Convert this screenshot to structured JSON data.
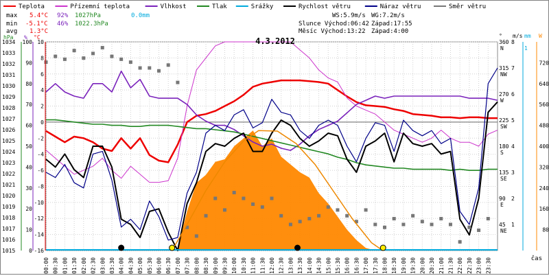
{
  "chart_data": {
    "type": "line",
    "title": "4.3.2012",
    "xlabel": "čas",
    "x_ticks": [
      "00:00",
      "00:30",
      "01:00",
      "01:30",
      "02:00",
      "02:30",
      "03:00",
      "03:30",
      "04:00",
      "04:30",
      "05:00",
      "05:30",
      "06:00",
      "06:30",
      "07:00",
      "07:30",
      "08:00",
      "08:30",
      "09:00",
      "09:30",
      "10:00",
      "10:30",
      "11:00",
      "11:30",
      "12:00",
      "12:30",
      "13:00",
      "13:30",
      "14:00",
      "14:30",
      "15:00",
      "15:30",
      "16:00",
      "16:30",
      "17:00",
      "17:30",
      "18:00",
      "18:30",
      "19:00",
      "19:30",
      "20:00",
      "20:30",
      "21:00",
      "21:30",
      "22:00",
      "22:30",
      "23:00",
      "23:30"
    ],
    "legend": [
      {
        "name": "Teplota",
        "color": "#ee0000"
      },
      {
        "name": "Přízemní teplota",
        "color": "#cc33cc"
      },
      {
        "name": "Vlhkost",
        "color": "#7a22bb"
      },
      {
        "name": "Tlak",
        "color": "#228822"
      },
      {
        "name": "Srážky",
        "color": "#00aadd"
      },
      {
        "name": "Rychlost větru",
        "color": "#000000"
      },
      {
        "name": "Náraz větru",
        "color": "#000088"
      },
      {
        "name": "Směr větru",
        "color": "#777777"
      }
    ],
    "stats": {
      "max": {
        "label": "max",
        "temp": "5.4°C",
        "hum": "92%",
        "pres": "1027hPa",
        "rain": "0.0mm"
      },
      "min": {
        "label": "min",
        "temp": "-5.1°C",
        "hum": "46%",
        "pres": "1022.3hPa"
      },
      "avg": {
        "label": "avg",
        "temp": "1.3°C"
      }
    },
    "info": {
      "ws": "WS:5.9m/s",
      "wg": "WG:7.2m/s",
      "sun_rise": "Slunce Východ:06:42",
      "sun_set": "Západ:17:55",
      "moon_rise": "Měsíc  Východ:13:22",
      "moon_set": "Západ:4:00"
    },
    "axes": {
      "pressure": {
        "unit": "hPa",
        "min": 1015,
        "max": 1034,
        "ticks": [
          "1034",
          "1033",
          "1032",
          "1031",
          "1030",
          "1029",
          "1028",
          "1027",
          "1026",
          "1025",
          "1024",
          "1023",
          "1022",
          "1021",
          "1020",
          "1019",
          "1018",
          "1017",
          "1016",
          "1015"
        ]
      },
      "humidity": {
        "unit": "%",
        "min": 0,
        "max": 100,
        "ticks": [
          "100",
          "90",
          "80",
          "70",
          "60",
          "50",
          "40",
          "30",
          "20",
          "10",
          "0"
        ]
      },
      "temperature": {
        "unit": "°C",
        "min": -16,
        "max": 10,
        "ticks": [
          "10",
          "8",
          "6",
          "4",
          "2",
          "0",
          "-2",
          "-4",
          "-6",
          "-8",
          "-10",
          "-12",
          "-14",
          "-16"
        ]
      },
      "direction": {
        "unit": "°",
        "min": 0,
        "max": 360,
        "ticks": [
          {
            "deg": "360",
            "dir": "N"
          },
          {
            "deg": "315",
            "dir": "NW"
          },
          {
            "deg": "270",
            "dir": "W"
          },
          {
            "deg": "225",
            "dir": "SW"
          },
          {
            "deg": "180",
            "dir": "S"
          },
          {
            "deg": "135",
            "dir": "SE"
          },
          {
            "deg": "90",
            "dir": "E"
          },
          {
            "deg": "45",
            "dir": "NE"
          }
        ]
      },
      "wind": {
        "unit": "m/s",
        "min": 0,
        "max": 8,
        "ticks": [
          "8",
          "7",
          "6",
          "5",
          "4",
          "3",
          "2",
          "1"
        ]
      },
      "rain": {
        "unit": "mm",
        "min": 0,
        "max": 1,
        "ticks": [
          "1"
        ]
      },
      "solar": {
        "unit": "W",
        "min": 0,
        "max": 800,
        "ticks": [
          "720",
          "640",
          "560",
          "480",
          "400",
          "320",
          "240",
          "160",
          "80"
        ]
      }
    },
    "series": [
      {
        "name": "Teplota",
        "axis": "temperature",
        "x": [
          0,
          0.5,
          1,
          1.5,
          2,
          2.5,
          3,
          3.5,
          4,
          4.5,
          5,
          5.5,
          6,
          6.5,
          7,
          7.5,
          8,
          8.5,
          9,
          9.5,
          10,
          10.5,
          11,
          11.5,
          12,
          12.5,
          13,
          13.5,
          14,
          14.5,
          15,
          15.5,
          16,
          16.5,
          17,
          17.5,
          18,
          18.5,
          19,
          19.5,
          20,
          20.5,
          21,
          21.5,
          22,
          22.5,
          23,
          23.5,
          24
        ],
        "y": [
          -1.1,
          -1.8,
          -2.5,
          -1.8,
          -2,
          -2.5,
          -3.3,
          -3.6,
          -2,
          -3.3,
          -2,
          -4.1,
          -4.8,
          -5,
          -2.8,
          0,
          0.8,
          1,
          1.4,
          2,
          2.6,
          3.4,
          4.4,
          4.8,
          5,
          5.2,
          5.2,
          5.2,
          5.1,
          5.0,
          4.8,
          4.0,
          3.2,
          2.5,
          2.1,
          2.0,
          1.9,
          1.6,
          1.4,
          1.0,
          0.9,
          0.8,
          0.6,
          0.6,
          0.5,
          0.6,
          0.6,
          0.5,
          0.5
        ]
      },
      {
        "name": "Přízemní teplota",
        "axis": "temperature",
        "x": [
          0,
          0.5,
          1,
          1.5,
          2,
          2.5,
          3,
          3.5,
          4,
          4.5,
          5,
          5.5,
          6,
          6.5,
          7,
          7.5,
          8,
          8.5,
          9,
          9.5,
          10,
          10.5,
          11,
          11.5,
          12,
          12.5,
          13,
          13.5,
          14,
          14.5,
          15,
          15.5,
          16,
          16.5,
          17,
          17.5,
          18,
          18.5,
          19,
          19.5,
          20,
          20.5,
          21,
          21.5,
          22,
          22.5,
          23,
          23.5,
          24
        ],
        "y": [
          -3.5,
          -4.5,
          -5.5,
          -6.5,
          -6,
          -5.5,
          -4.5,
          -6,
          -7,
          -5.5,
          -6.5,
          -7.5,
          -7.5,
          -7.3,
          -4.5,
          2,
          6.5,
          8,
          9.5,
          10,
          10,
          10,
          10,
          10,
          10,
          10,
          10,
          9,
          8,
          6.5,
          5.5,
          5,
          3,
          2,
          1.5,
          1,
          0,
          -1,
          -1.5,
          -2,
          -2.5,
          -2,
          -1,
          -2,
          -2.5,
          -2.5,
          -3,
          -1.5,
          -1
        ]
      },
      {
        "name": "Vlhkost",
        "axis": "humidity",
        "x": [
          0,
          0.5,
          1,
          1.5,
          2,
          2.5,
          3,
          3.5,
          4,
          4.5,
          5,
          5.5,
          6,
          6.5,
          7,
          7.5,
          8,
          8.5,
          9,
          9.5,
          10,
          10.5,
          11,
          11.5,
          12,
          12.5,
          13,
          13.5,
          14,
          14.5,
          15,
          15.5,
          16,
          16.5,
          17,
          17.5,
          18,
          18.5,
          19,
          19.5,
          20,
          20.5,
          21,
          21.5,
          22,
          22.5,
          23,
          23.5,
          24
        ],
        "y": [
          76,
          80,
          76,
          74,
          73,
          80,
          80,
          76,
          86,
          78,
          82,
          74,
          73,
          73,
          73,
          70,
          65,
          62,
          60,
          60,
          58,
          55,
          52,
          50,
          51,
          49,
          48,
          51,
          55,
          58,
          60,
          62,
          66,
          70,
          72,
          74,
          73,
          74,
          74,
          74,
          74,
          74,
          74,
          74,
          74,
          73,
          73,
          73,
          72
        ]
      },
      {
        "name": "Tlak",
        "axis": "pressure",
        "x": [
          0,
          0.5,
          1,
          1.5,
          2,
          2.5,
          3,
          3.5,
          4,
          4.5,
          5,
          5.5,
          6,
          6.5,
          7,
          7.5,
          8,
          8.5,
          9,
          9.5,
          10,
          10.5,
          11,
          11.5,
          12,
          12.5,
          13,
          13.5,
          14,
          14.5,
          15,
          15.5,
          16,
          16.5,
          17,
          17.5,
          18,
          18.5,
          19,
          19.5,
          20,
          20.5,
          21,
          21.5,
          22,
          22.5,
          23,
          23.5,
          24
        ],
        "y": [
          1026.9,
          1026.9,
          1026.8,
          1026.7,
          1026.6,
          1026.5,
          1026.5,
          1026.4,
          1026.4,
          1026.3,
          1026.3,
          1026.4,
          1026.4,
          1026.4,
          1026.3,
          1026.2,
          1026.1,
          1026.1,
          1026,
          1025.9,
          1025.8,
          1025.6,
          1025.4,
          1025.2,
          1025,
          1024.8,
          1024.6,
          1024.4,
          1024.2,
          1024,
          1023.8,
          1023.5,
          1023.3,
          1023,
          1022.8,
          1022.7,
          1022.6,
          1022.5,
          1022.5,
          1022.4,
          1022.4,
          1022.4,
          1022.4,
          1022.3,
          1022.4,
          1022.3,
          1022.3,
          1022.4,
          1022.4
        ]
      },
      {
        "name": "Rychlost větru",
        "axis": "wind",
        "x": [
          0,
          0.5,
          1,
          1.5,
          2,
          2.5,
          3,
          3.5,
          4,
          4.5,
          5,
          5.5,
          6,
          6.5,
          7,
          7.5,
          8,
          8.5,
          9,
          9.5,
          10,
          10.5,
          11,
          11.5,
          12,
          12.5,
          13,
          13.5,
          14,
          14.5,
          15,
          15.5,
          16,
          16.5,
          17,
          17.5,
          18,
          18.5,
          19,
          19.5,
          20,
          20.5,
          21,
          21.5,
          22,
          22.5,
          23,
          23.5,
          24
        ],
        "y": [
          3.5,
          3.2,
          3.7,
          3.1,
          2.8,
          4.0,
          4.0,
          3.2,
          1.2,
          1.0,
          0.5,
          1.5,
          1.6,
          0.7,
          0,
          1.8,
          2.6,
          3.8,
          4.1,
          4.0,
          4.3,
          4.5,
          3.8,
          3.8,
          4.5,
          5.0,
          4.8,
          4.3,
          4.0,
          4.2,
          4.5,
          4.4,
          3.5,
          3.0,
          4.0,
          4.2,
          4.5,
          3.4,
          4.5,
          4.1,
          4.0,
          4.1,
          3.7,
          3.8,
          1.2,
          0.6,
          2.0,
          5.3,
          5.7
        ]
      },
      {
        "name": "Náraz větru",
        "axis": "wind",
        "x": [
          0,
          0.5,
          1,
          1.5,
          2,
          2.5,
          3,
          3.5,
          4,
          4.5,
          5,
          5.5,
          6,
          6.5,
          7,
          7.5,
          8,
          8.5,
          9,
          9.5,
          10,
          10.5,
          11,
          11.5,
          12,
          12.5,
          13,
          13.5,
          14,
          14.5,
          15,
          15.5,
          16,
          16.5,
          17,
          17.5,
          18,
          18.5,
          19,
          19.5,
          20,
          20.5,
          21,
          21.5,
          22,
          22.5,
          23,
          23.5,
          24
        ],
        "y": [
          3.0,
          2.8,
          3.3,
          2.6,
          2.4,
          3.7,
          3.8,
          2.7,
          0.9,
          1.2,
          0.8,
          1.9,
          1.3,
          0.4,
          0.5,
          2.2,
          3.0,
          4.5,
          4.8,
          4.6,
          5.2,
          5.4,
          4.7,
          4.9,
          5.8,
          5.3,
          5.2,
          4.6,
          4.3,
          4.8,
          5.0,
          4.8,
          4.0,
          3.4,
          4.3,
          4.9,
          4.8,
          3.8,
          5.0,
          4.6,
          4.4,
          4.6,
          4.1,
          4.3,
          1.5,
          1.0,
          2.4,
          6.4,
          7.0
        ]
      },
      {
        "name": "Směr větru",
        "axis": "direction",
        "type": "scatter",
        "x": [
          0,
          0.5,
          1,
          1.5,
          2,
          2.5,
          3,
          3.5,
          4,
          4.5,
          5,
          5.5,
          6,
          6.5,
          7,
          7.5,
          8,
          8.5,
          9,
          9.5,
          10,
          10.5,
          11,
          11.5,
          12,
          12.5,
          13,
          13.5,
          14,
          14.5,
          15,
          15.5,
          16,
          16.5,
          17,
          17.5,
          18,
          18.5,
          19,
          19.5,
          20,
          20.5,
          21,
          21.5,
          22,
          22.5,
          23,
          23.5
        ],
        "y": [
          325,
          335,
          330,
          345,
          332,
          340,
          350,
          335,
          330,
          325,
          315,
          315,
          310,
          320,
          290,
          40,
          25,
          60,
          90,
          70,
          100,
          90,
          80,
          75,
          90,
          60,
          45,
          50,
          55,
          60,
          75,
          70,
          60,
          50,
          70,
          45,
          40,
          55,
          45,
          60,
          50,
          45,
          55,
          45,
          15,
          40,
          35,
          55
        ]
      },
      {
        "name": "Srážky",
        "axis": "rain",
        "y": [
          0
        ]
      },
      {
        "name": "Sluneční záření",
        "axis": "solar",
        "type": "area",
        "x": [
          7,
          7.5,
          8,
          8.5,
          9,
          9.5,
          10,
          10.5,
          11,
          11.5,
          12,
          12.5,
          13,
          13.5,
          14,
          14.5,
          15,
          15.5,
          16,
          16.5,
          17,
          17.5
        ],
        "y": [
          10,
          150,
          260,
          290,
          340,
          350,
          400,
          430,
          460,
          400,
          430,
          360,
          330,
          300,
          280,
          220,
          180,
          130,
          80,
          40,
          10,
          0
        ]
      },
      {
        "name": "Teoretické záření",
        "axis": "solar",
        "type": "curve",
        "x": [
          6.7,
          7.5,
          8.5,
          9.5,
          10.5,
          11.3,
          12.3,
          13.3,
          14.3,
          15.3,
          16.3,
          17.3,
          17.9
        ],
        "y": [
          0,
          100,
          230,
          340,
          420,
          460,
          458,
          410,
          330,
          225,
          120,
          30,
          0
        ]
      }
    ],
    "markers": [
      {
        "kind": "moonset",
        "time": "04:00",
        "color": "#000000"
      },
      {
        "kind": "sunrise",
        "time": "06:42",
        "color": "#ffee00"
      },
      {
        "kind": "moonrise",
        "time": "13:22",
        "color": "#000000"
      },
      {
        "kind": "sunset",
        "time": "17:55",
        "color": "#ffee00"
      }
    ],
    "colors": {
      "background": "#ffffff",
      "temperature": "#ee0000",
      "ground_temperature": "#cc33cc",
      "humidity": "#7a22bb",
      "pressure": "#228822",
      "rain": "#00aadd",
      "wind": "#000000",
      "gust": "#000088",
      "direction": "#777777",
      "solar": "#ff8800",
      "solar_theoretical": "#ee8800"
    }
  }
}
